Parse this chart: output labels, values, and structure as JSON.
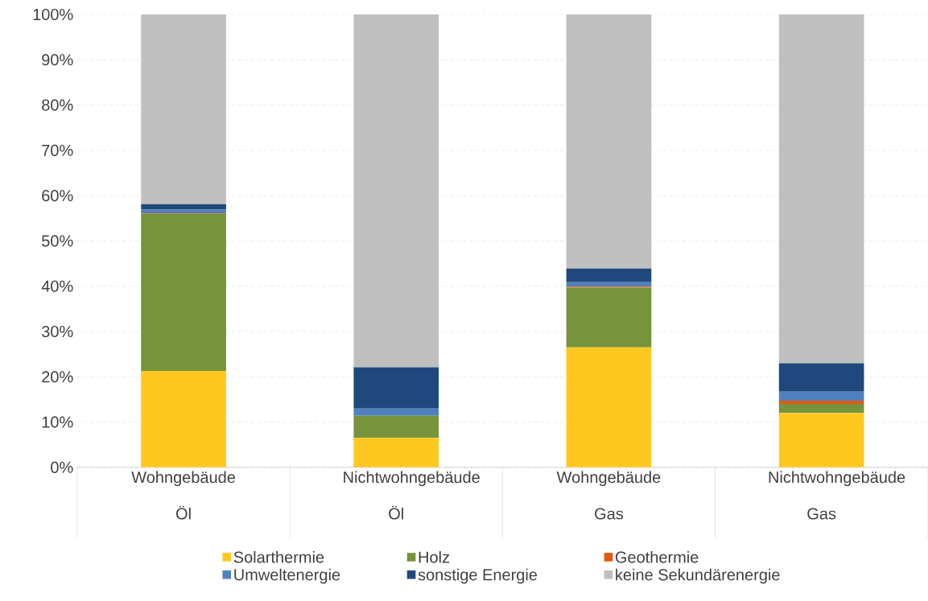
{
  "chart_data": {
    "type": "bar",
    "stacked": true,
    "categories": [
      "Wohngebäude Öl",
      "Nichtwohngebäude Öl",
      "Wohngebäude Gas",
      "Nichtwohngebäude Gas"
    ],
    "series": [
      {
        "name": "Solarthermie",
        "color": "#ffc820",
        "values": [
          21.3,
          6.5,
          26.5,
          12.0
        ]
      },
      {
        "name": "Holz",
        "color": "#77933c",
        "values": [
          34.7,
          4.9,
          13.2,
          2.0
        ]
      },
      {
        "name": "Geothermie",
        "color": "#e05a10",
        "values": [
          0.1,
          0,
          0.2,
          0.7
        ]
      },
      {
        "name": "Umweltenergie",
        "color": "#4f81bd",
        "values": [
          0.8,
          1.6,
          1.0,
          2.0
        ]
      },
      {
        "name": "sonstige Energie",
        "color": "#1f497d",
        "values": [
          1.2,
          9.1,
          3.0,
          6.3
        ]
      },
      {
        "name": "keine Sekundärenergie",
        "color": "#bfbfbf",
        "values": [
          41.9,
          77.9,
          56.1,
          77.0
        ]
      }
    ],
    "ylim": [
      0,
      100
    ],
    "yticks": [
      {
        "value": 0,
        "label": "0%"
      },
      {
        "value": 10,
        "label": "10%"
      },
      {
        "value": 20,
        "label": "20%"
      },
      {
        "value": 30,
        "label": "30%"
      },
      {
        "value": 40,
        "label": "40%"
      },
      {
        "value": 50,
        "label": "50%"
      },
      {
        "value": 60,
        "label": "60%"
      },
      {
        "value": 70,
        "label": "70%"
      },
      {
        "value": 80,
        "label": "80%"
      },
      {
        "value": 90,
        "label": "90%"
      },
      {
        "value": 100,
        "label": "100%"
      }
    ],
    "grid": "y",
    "legend": "bottom"
  }
}
